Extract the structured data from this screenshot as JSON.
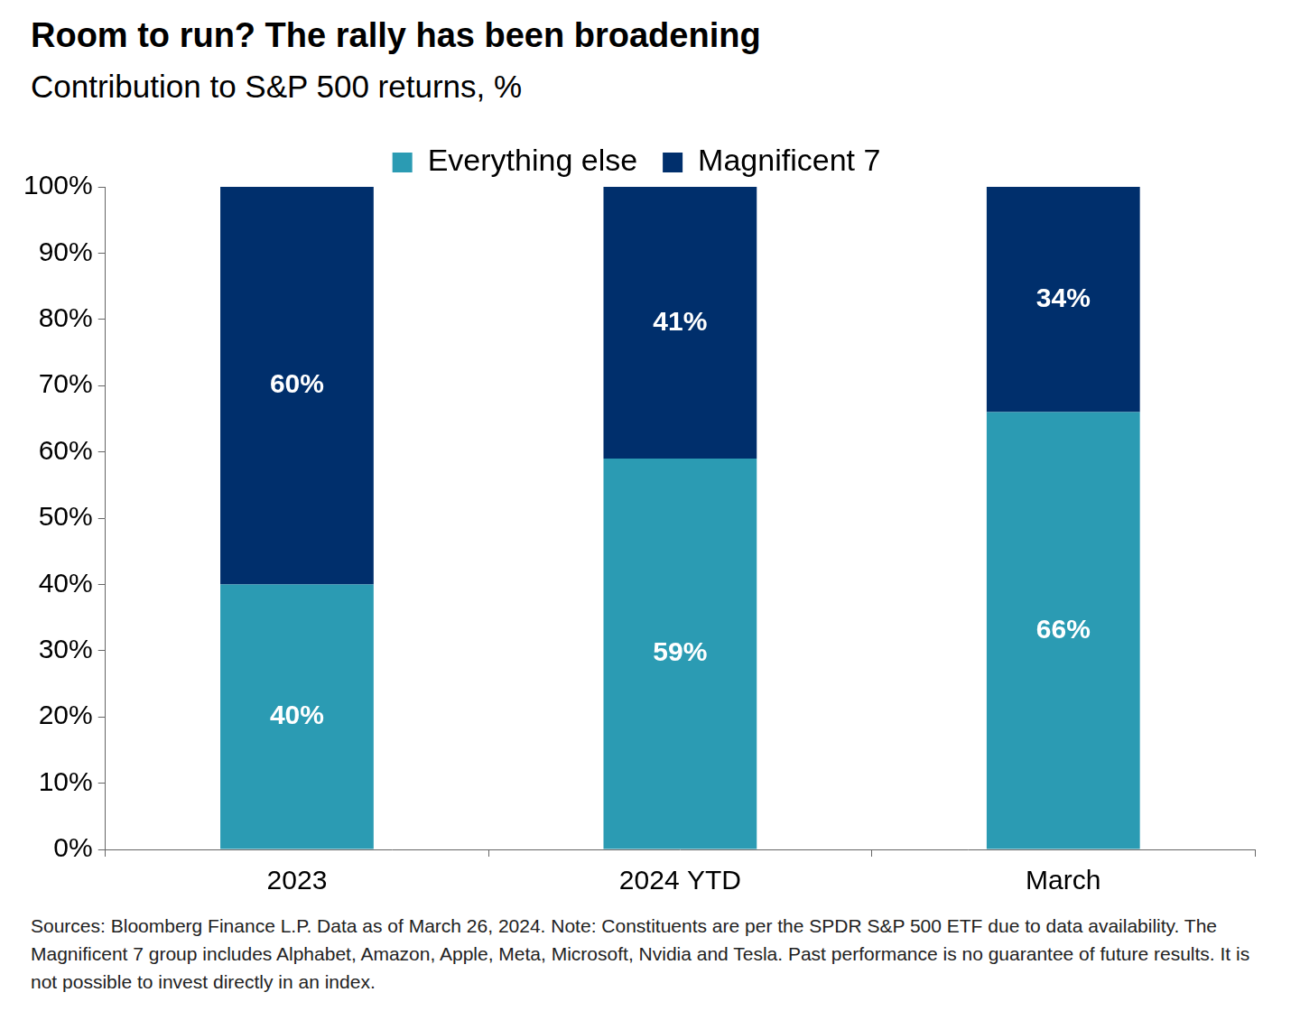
{
  "chart_data": {
    "type": "bar",
    "title": "Room to run? The rally has been broadening",
    "subtitle": "Contribution to S&P 500 returns, %",
    "categories": [
      "2023",
      "2024 YTD",
      "March"
    ],
    "series": [
      {
        "name": "Everything else",
        "color": "#2b9bb3",
        "values": [
          40,
          59,
          66
        ],
        "value_labels": [
          "40%",
          "59%",
          "66%"
        ]
      },
      {
        "name": "Magnificent 7",
        "color": "#002f6c",
        "values": [
          60,
          41,
          34
        ],
        "value_labels": [
          "60%",
          "41%",
          "34%"
        ]
      }
    ],
    "stacked": true,
    "data_labels": true,
    "legend": "top",
    "grid": false,
    "ylim": [
      0,
      100
    ],
    "yticks": [
      {
        "value": 0,
        "label": "0%"
      },
      {
        "value": 10,
        "label": "10%"
      },
      {
        "value": 20,
        "label": "20%"
      },
      {
        "value": 30,
        "label": "30%"
      },
      {
        "value": 40,
        "label": "40%"
      },
      {
        "value": 50,
        "label": "50%"
      },
      {
        "value": 60,
        "label": "60%"
      },
      {
        "value": 70,
        "label": "70%"
      },
      {
        "value": 80,
        "label": "80%"
      },
      {
        "value": 90,
        "label": "90%"
      },
      {
        "value": 100,
        "label": "100%"
      }
    ],
    "annotations": [
      "Sources: Bloomberg Finance L.P. Data as of March 26, 2024. Note: Constituents are per the SPDR S&P 500 ETF due to data availability. The Magnificent 7 group includes Alphabet, Amazon, Apple, Meta, Microsoft, Nvidia and Tesla. Past performance is no guarantee of future results. It is not possible to invest directly in an index."
    ]
  }
}
